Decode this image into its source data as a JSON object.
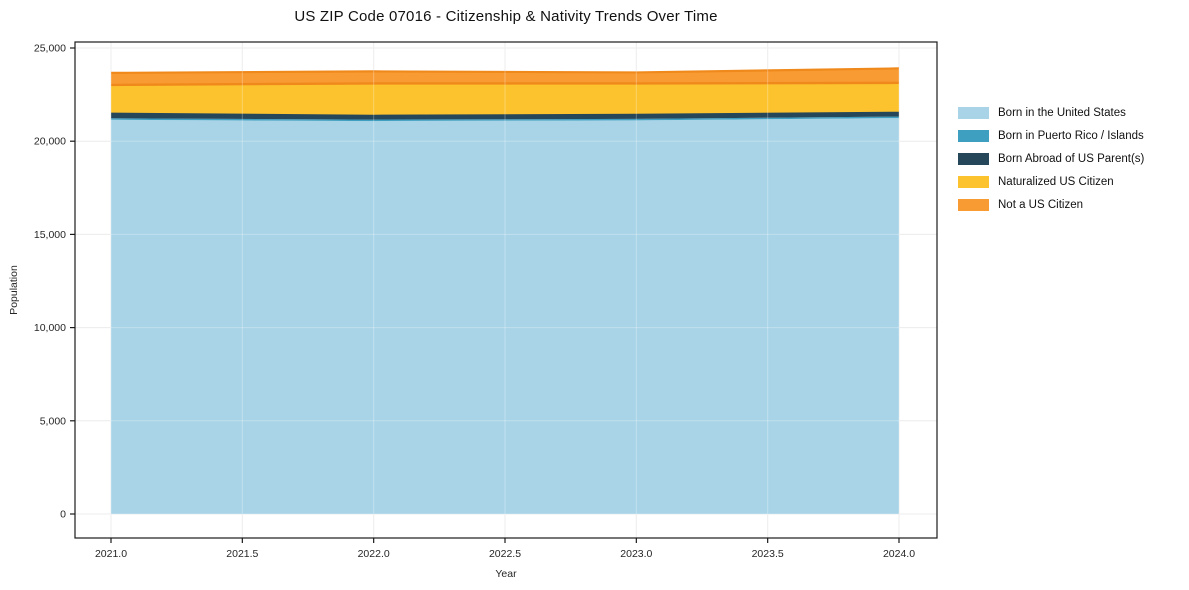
{
  "title": "US ZIP Code 07016 - Citizenship & Nativity Trends Over Time",
  "axes": {
    "xlabel": "Year",
    "ylabel": "Population",
    "x_ticks": [
      {
        "v": 2021.0,
        "label": "2021.0"
      },
      {
        "v": 2021.5,
        "label": "2021.5"
      },
      {
        "v": 2022.0,
        "label": "2022.0"
      },
      {
        "v": 2022.5,
        "label": "2022.5"
      },
      {
        "v": 2023.0,
        "label": "2023.0"
      },
      {
        "v": 2023.5,
        "label": "2023.5"
      },
      {
        "v": 2024.0,
        "label": "2024.0"
      }
    ],
    "y_ticks": [
      {
        "v": 0,
        "label": "0"
      },
      {
        "v": 5000,
        "label": "5,000"
      },
      {
        "v": 10000,
        "label": "10,000"
      },
      {
        "v": 15000,
        "label": "15,000"
      },
      {
        "v": 20000,
        "label": "20,000"
      },
      {
        "v": 25000,
        "label": "25,000"
      }
    ]
  },
  "colors": {
    "grid": "#e7e7e7",
    "grid_overlay": "rgba(255,255,255,0.28)",
    "spine": "#1a1a1a",
    "tick_label": "#262626",
    "edge_orange": "#f0891b",
    "edge_navy": "#26475a"
  },
  "chart_data": {
    "type": "area",
    "stacked": true,
    "title": "US ZIP Code 07016 - Citizenship & Nativity Trends Over Time",
    "xlabel": "Year",
    "ylabel": "Population",
    "x": [
      2021,
      2022,
      2023,
      2024
    ],
    "series": [
      {
        "name": "Born in the United States",
        "color": "#a9d4e8",
        "values": [
          21150,
          21080,
          21120,
          21240
        ]
      },
      {
        "name": "Born in Puerto Rico / Islands",
        "color": "#3f9fc0",
        "values": [
          80,
          80,
          80,
          80
        ]
      },
      {
        "name": "Born Abroad of US Parent(s)",
        "color": "#26475a",
        "values": [
          270,
          230,
          240,
          230
        ]
      },
      {
        "name": "Naturalized US Citizen",
        "color": "#fcc32e",
        "values": [
          1520,
          1710,
          1660,
          1580
        ]
      },
      {
        "name": "Not a US Citizen",
        "color": "#f89b33",
        "values": [
          645,
          645,
          590,
          775
        ]
      }
    ],
    "totals": [
      23665,
      23745,
      23690,
      23905
    ],
    "xlim": [
      2020.86,
      2024.15
    ],
    "ylim": [
      -1290,
      25320
    ],
    "grid": true,
    "legend_position": "right"
  }
}
